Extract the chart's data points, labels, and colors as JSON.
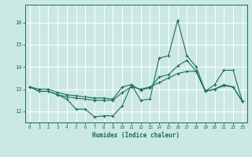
{
  "xlabel": "Humidex (Indice chaleur)",
  "ylabel": "",
  "bg_color": "#cce8e5",
  "grid_color": "#ffffff",
  "line_color": "#1a6b5e",
  "xlim": [
    -0.5,
    23.5
  ],
  "ylim": [
    11.5,
    16.8
  ],
  "yticks": [
    12,
    13,
    14,
    15,
    16
  ],
  "xticks": [
    0,
    1,
    2,
    3,
    4,
    5,
    6,
    7,
    8,
    9,
    10,
    11,
    12,
    13,
    14,
    15,
    16,
    17,
    18,
    19,
    20,
    21,
    22,
    23
  ],
  "series": [
    [
      13.1,
      12.9,
      12.9,
      12.75,
      12.55,
      12.1,
      12.1,
      11.75,
      11.8,
      11.8,
      12.25,
      13.2,
      12.5,
      12.55,
      14.4,
      14.5,
      16.1,
      14.5,
      14.0,
      12.9,
      13.0,
      13.2,
      13.1,
      12.45
    ],
    [
      13.1,
      12.9,
      12.9,
      12.75,
      12.65,
      12.6,
      12.55,
      12.5,
      12.5,
      12.5,
      12.85,
      13.1,
      13.0,
      13.1,
      13.3,
      13.5,
      13.7,
      13.8,
      13.8,
      12.9,
      13.2,
      13.85,
      13.85,
      12.45
    ],
    [
      13.1,
      13.0,
      13.0,
      12.85,
      12.75,
      12.7,
      12.65,
      12.6,
      12.6,
      12.55,
      13.1,
      13.2,
      12.95,
      13.05,
      13.55,
      13.65,
      14.05,
      14.3,
      13.8,
      12.9,
      13.0,
      13.15,
      13.1,
      12.45
    ]
  ]
}
